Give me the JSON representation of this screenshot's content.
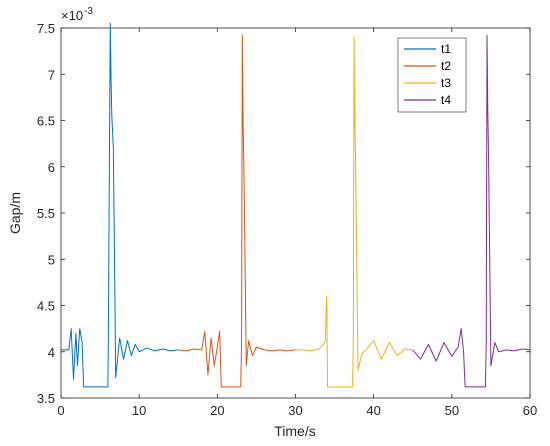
{
  "chart_data": {
    "type": "line",
    "title": "",
    "xlabel": "Time/s",
    "ylabel": "Gap/m",
    "y_exponent_label": "×10",
    "y_exponent_power": "-3",
    "xlim": [
      0,
      60
    ],
    "ylim": [
      3.5,
      7.5
    ],
    "y_scale_factor": 0.001,
    "grid": false,
    "legend_position": "top-right",
    "x_ticks": [
      0,
      10,
      20,
      30,
      40,
      50,
      60
    ],
    "x_tick_labels": [
      "0",
      "10",
      "20",
      "30",
      "40",
      "50",
      "60"
    ],
    "y_ticks": [
      3.5,
      4,
      4.5,
      5,
      5.5,
      6,
      6.5,
      7,
      7.5
    ],
    "y_tick_labels": [
      "3.5",
      "4",
      "4.5",
      "5",
      "5.5",
      "6",
      "6.5",
      "7",
      "7.5"
    ],
    "series": [
      {
        "name": "t1",
        "color": "#0072BD",
        "x": [
          0,
          1.0,
          1.3,
          1.6,
          1.9,
          2.1,
          2.4,
          2.7,
          2.9,
          3.0,
          6.0,
          6.05,
          6.3,
          6.4,
          6.5,
          6.7,
          7.0,
          7.5,
          8.0,
          8.5,
          9.0,
          9.5,
          10.0,
          11.0,
          12.0,
          13.0,
          14.0,
          15.0
        ],
        "y": [
          4.02,
          4.02,
          4.25,
          3.7,
          4.2,
          3.85,
          4.25,
          4.1,
          3.62,
          3.62,
          3.62,
          4.1,
          7.55,
          6.95,
          6.55,
          6.2,
          3.72,
          4.15,
          3.92,
          4.12,
          3.96,
          4.08,
          4.0,
          4.04,
          4.01,
          4.03,
          4.01,
          4.02
        ]
      },
      {
        "name": "t2",
        "color": "#D95319",
        "x": [
          15.0,
          16.0,
          17.0,
          18.0,
          18.4,
          18.8,
          19.2,
          19.6,
          20.0,
          20.3,
          20.5,
          23.0,
          23.1,
          23.2,
          23.3,
          23.4,
          23.7,
          24.0,
          24.5,
          25.0,
          26.0,
          27.0,
          28.0,
          29.0,
          30.0
        ],
        "y": [
          4.02,
          4.01,
          4.03,
          4.02,
          4.22,
          3.75,
          4.15,
          3.85,
          4.05,
          4.22,
          3.62,
          3.62,
          4.1,
          7.42,
          6.45,
          6.0,
          3.85,
          4.12,
          3.96,
          4.05,
          4.02,
          4.01,
          4.02,
          4.01,
          4.02
        ]
      },
      {
        "name": "t3",
        "color": "#EDB120",
        "x": [
          30.0,
          31.0,
          32.0,
          33.0,
          33.8,
          34.0,
          34.1,
          34.2,
          37.3,
          37.4,
          37.5,
          37.6,
          37.7,
          38.0,
          38.5,
          39.0,
          40.0,
          41.0,
          42.0,
          43.0,
          44.0,
          45.0
        ],
        "y": [
          4.02,
          4.02,
          4.01,
          4.03,
          4.1,
          4.6,
          3.62,
          3.62,
          3.62,
          4.2,
          7.4,
          6.5,
          6.0,
          3.8,
          3.98,
          4.02,
          4.12,
          3.92,
          4.1,
          3.96,
          4.03,
          4.02
        ]
      },
      {
        "name": "t4",
        "color": "#7E2F8E",
        "x": [
          45.0,
          46.0,
          47.0,
          48.0,
          49.0,
          50.0,
          50.8,
          51.2,
          51.5,
          51.7,
          54.3,
          54.4,
          54.5,
          54.6,
          54.7,
          55.0,
          55.5,
          56.0,
          57.0,
          58.0,
          59.0,
          60.0
        ],
        "y": [
          4.02,
          3.92,
          4.08,
          3.9,
          4.1,
          3.95,
          4.05,
          4.25,
          4.0,
          3.62,
          3.62,
          4.1,
          7.42,
          6.6,
          6.1,
          3.85,
          4.1,
          4.0,
          4.02,
          4.01,
          4.03,
          4.02
        ]
      }
    ]
  }
}
